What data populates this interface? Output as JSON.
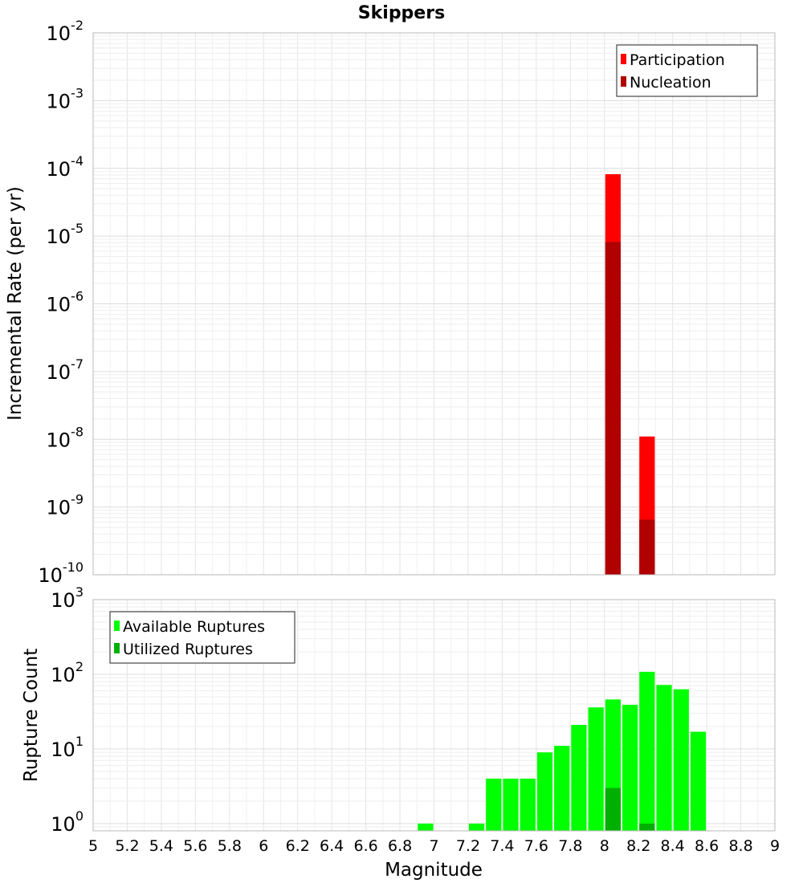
{
  "chart_data": [
    {
      "type": "bar",
      "title": "Skippers",
      "xlabel": "",
      "ylabel": "Incremental Rate (per yr)",
      "y_scale": "log",
      "ylim": [
        1e-10,
        0.01
      ],
      "xlim": [
        5,
        9
      ],
      "bar_width": 0.1,
      "grid": true,
      "legend_position": "top-right",
      "y_ticks": [
        {
          "base": "10",
          "exp": "-10",
          "value": 1e-10
        },
        {
          "base": "10",
          "exp": "-9",
          "value": 1e-09
        },
        {
          "base": "10",
          "exp": "-8",
          "value": 1e-08
        },
        {
          "base": "10",
          "exp": "-7",
          "value": 1e-07
        },
        {
          "base": "10",
          "exp": "-6",
          "value": 1e-06
        },
        {
          "base": "10",
          "exp": "-5",
          "value": 1e-05
        },
        {
          "base": "10",
          "exp": "-4",
          "value": 0.0001
        },
        {
          "base": "10",
          "exp": "-3",
          "value": 0.001
        },
        {
          "base": "10",
          "exp": "-2",
          "value": 0.01
        }
      ],
      "series": [
        {
          "name": "Participation",
          "color": "#ff0000",
          "x": [
            8.05,
            8.25
          ],
          "values": [
            8.2e-05,
            1.1e-08
          ]
        },
        {
          "name": "Nucleation",
          "color": "#b00000",
          "x": [
            8.05,
            8.25
          ],
          "values": [
            8.2e-06,
            6.5e-10
          ]
        }
      ]
    },
    {
      "type": "bar",
      "title": "",
      "xlabel": "Magnitude",
      "ylabel": "Rupture Count",
      "y_scale": "log",
      "ylim": [
        0.8,
        1000
      ],
      "xlim": [
        5,
        9
      ],
      "bar_width": 0.1,
      "grid": true,
      "legend_position": "top-left",
      "y_ticks": [
        {
          "base": "10",
          "exp": "0",
          "value": 1
        },
        {
          "base": "10",
          "exp": "1",
          "value": 10
        },
        {
          "base": "10",
          "exp": "2",
          "value": 100
        },
        {
          "base": "10",
          "exp": "3",
          "value": 1000
        }
      ],
      "x_ticks": [
        "5",
        "5.2",
        "5.4",
        "5.6",
        "5.8",
        "6",
        "6.2",
        "6.4",
        "6.6",
        "6.8",
        "7",
        "7.2",
        "7.4",
        "7.6",
        "7.8",
        "8",
        "8.2",
        "8.4",
        "8.6",
        "8.8",
        "9"
      ],
      "series": [
        {
          "name": "Available Ruptures",
          "color": "#00ff00",
          "x": [
            6.95,
            7.25,
            7.35,
            7.45,
            7.55,
            7.65,
            7.75,
            7.85,
            7.95,
            8.05,
            8.15,
            8.25,
            8.35,
            8.45,
            8.55
          ],
          "values": [
            1,
            1,
            4,
            4,
            4,
            9,
            11,
            21,
            36,
            46,
            39,
            108,
            72,
            63,
            17
          ]
        },
        {
          "name": "Utilized Ruptures",
          "color": "#00b000",
          "x": [
            8.05,
            8.25
          ],
          "values": [
            3,
            1
          ]
        }
      ]
    }
  ]
}
